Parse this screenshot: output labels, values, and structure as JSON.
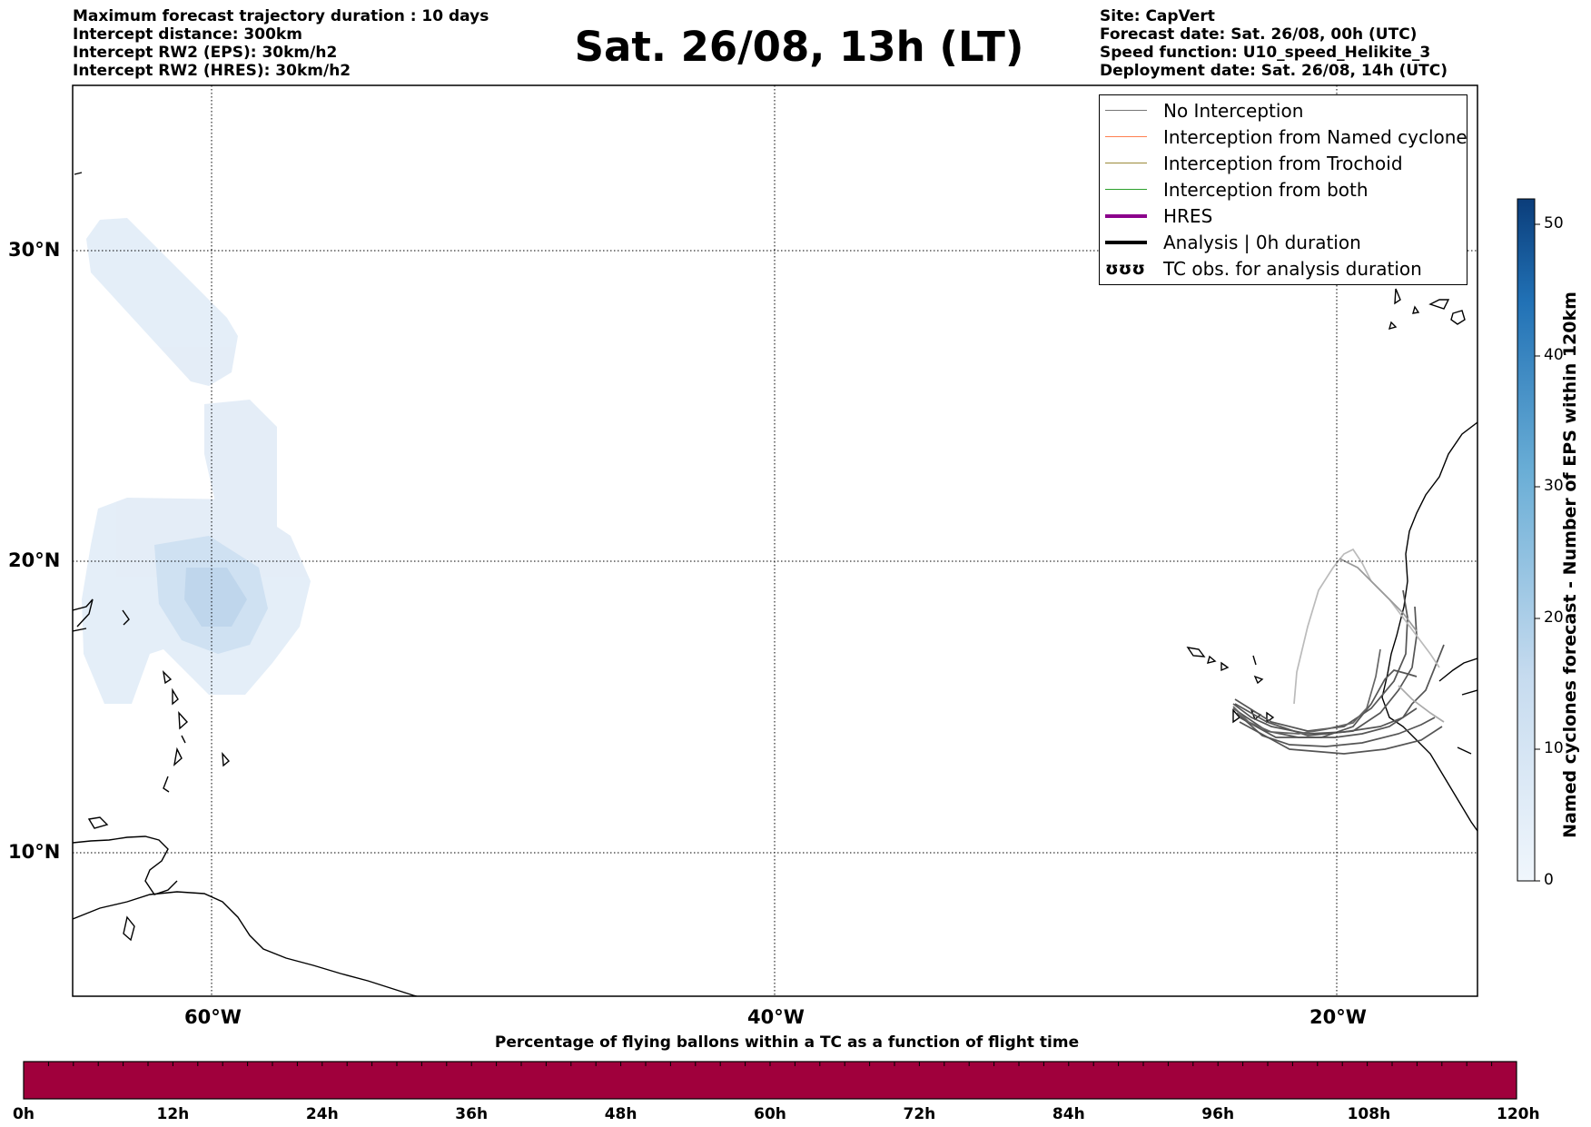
{
  "header": {
    "left": [
      "Maximum forecast trajectory duration : 10 days",
      "Intercept distance: 300km",
      "Intercept RW2 (EPS):  30km/h2",
      "Intercept RW2 (HRES): 30km/h2"
    ],
    "title": "Sat. 26/08, 13h (LT)",
    "right": [
      "Site: CapVert",
      "Forecast date: Sat. 26/08, 00h (UTC)",
      "Speed function: U10_speed_Helikite_3",
      "Deployment date: Sat. 26/08, 14h (UTC)"
    ]
  },
  "map": {
    "lat_labels": [
      "30°N",
      "20°N",
      "10°N"
    ],
    "lon_labels": [
      "60°W",
      "40°W",
      "20°W"
    ]
  },
  "legend": {
    "items": [
      {
        "label": "No Interception",
        "color": "#777777",
        "style": "thin"
      },
      {
        "label": "Interception from Named cyclone",
        "color": "#ff7f50",
        "style": "thin"
      },
      {
        "label": "Interception from Trochoid",
        "color": "#9b8b3a",
        "style": "thin"
      },
      {
        "label": "Interception from both",
        "color": "#2ca02c",
        "style": "thin"
      },
      {
        "label": "HRES",
        "color": "#8b008b",
        "style": "thick"
      },
      {
        "label": "Analysis | 0h duration",
        "color": "#000000",
        "style": "thick"
      },
      {
        "label": "TC obs. for analysis duration",
        "color": "#000000",
        "style": "symbol",
        "symbol": "ʊʊʊ"
      }
    ]
  },
  "colorbar": {
    "title": "Named cyclones forecast - Number of EPS within 120km",
    "ticks": [
      "0",
      "10",
      "20",
      "30",
      "40",
      "50"
    ],
    "color_low": "#f0f6fc",
    "color_high": "#0b3d7a"
  },
  "timebar": {
    "title": "Percentage of flying ballons within a TC as a function of flight time",
    "ticks": [
      "0h",
      "12h",
      "24h",
      "36h",
      "48h",
      "60h",
      "72h",
      "84h",
      "96h",
      "108h",
      "120h"
    ],
    "color": "#a0003c"
  }
}
